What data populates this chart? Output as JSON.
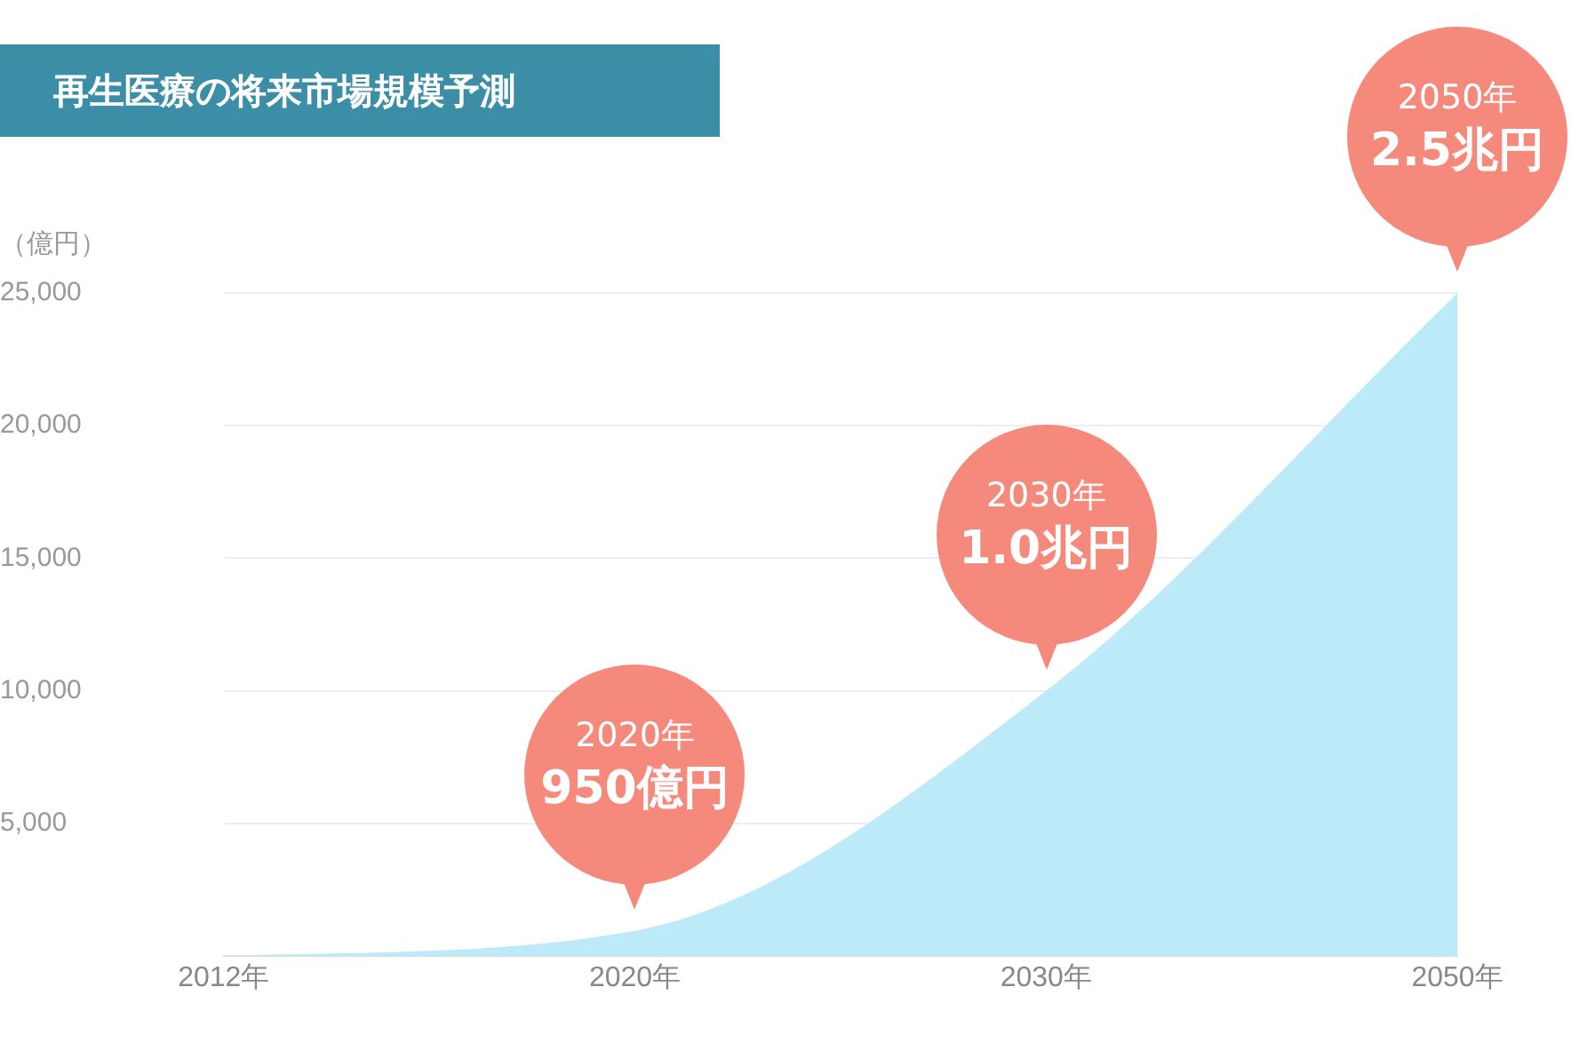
{
  "chart_data": {
    "type": "area",
    "title": "再生医療の将来市場規模予測",
    "ylabel": "（億円）",
    "categories": [
      "2012年",
      "2020年",
      "2030年",
      "2050年"
    ],
    "series": [
      {
        "color": "#bdeaf8",
        "values": [
          0,
          950,
          10000,
          25000
        ]
      }
    ],
    "ylim": [
      0,
      25000
    ],
    "yticks": [
      {
        "value": 5000,
        "label": "5,000"
      },
      {
        "value": 10000,
        "label": "10,000"
      },
      {
        "value": 15000,
        "label": "15,000"
      },
      {
        "value": 20000,
        "label": "20,000"
      },
      {
        "value": 25000,
        "label": "25,000"
      }
    ],
    "grid": "y",
    "legend": false,
    "annotations": [
      {
        "text": "2020年\n950億円",
        "x": "2020年",
        "y": 950
      },
      {
        "text": "2030年\n1.0兆円",
        "x": "2030年",
        "y": 10000
      },
      {
        "text": "2050年\n2.5兆円",
        "x": "2050年",
        "y": 25000
      }
    ]
  }
}
